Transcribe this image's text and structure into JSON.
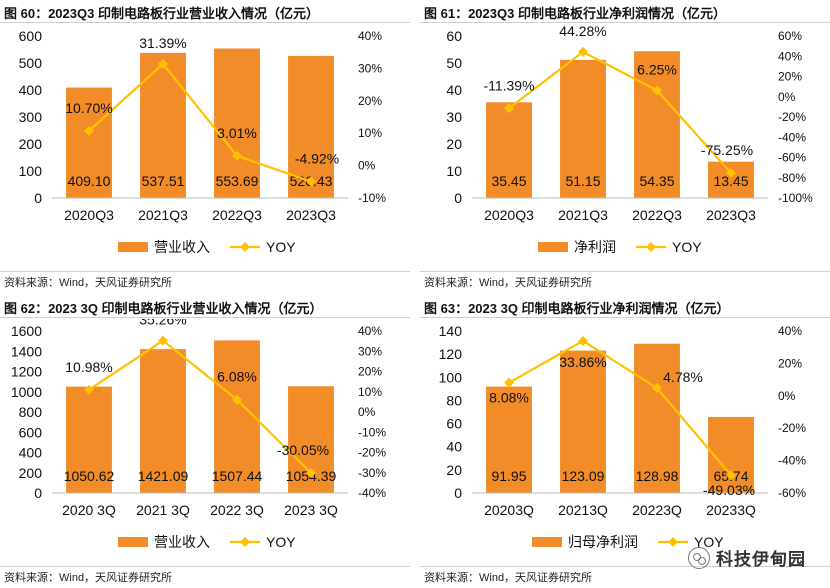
{
  "panels": [
    {
      "title": "图 60：2023Q3 印制电路板行业营业收入情况（亿元）",
      "source": "资料来源：Wind，天风证券研究所"
    },
    {
      "title": "图 61：2023Q3 印制电路板行业净利润情况（亿元）",
      "source": "资料来源：Wind，天风证券研究所"
    },
    {
      "title": "图 62：2023 3Q 印制电路板行业营业收入情况（亿元）",
      "source": "资料来源：Wind，天风证券研究所"
    },
    {
      "title": "图 63：2023 3Q 印制电路板行业净利润情况（亿元）",
      "source": "资料来源：Wind，天风证券研究所"
    }
  ],
  "watermark": {
    "text": "科技伊甸园",
    "icon": "wechat-icon"
  },
  "colors": {
    "bar": "#F28C28",
    "line": "#FFC000"
  },
  "chart_data": [
    {
      "type": "bar",
      "categories": [
        "2020Q3",
        "2021Q3",
        "2022Q3",
        "2023Q3"
      ],
      "series": [
        {
          "name": "营业收入",
          "values": [
            409.1,
            537.51,
            553.69,
            526.43
          ],
          "labels": [
            "409.10",
            "537.51",
            "553.69",
            "526.43"
          ]
        },
        {
          "name": "YOY",
          "type": "line",
          "axis": "right",
          "values": [
            10.7,
            31.39,
            3.01,
            -4.92
          ],
          "labels": [
            "10.70%",
            "31.39%",
            "3.01%",
            "-4.92%"
          ]
        }
      ],
      "ylim": [
        0,
        600
      ],
      "yticks": [
        "0",
        "100",
        "200",
        "300",
        "400",
        "500",
        "600"
      ],
      "y2lim": [
        -10,
        40
      ],
      "y2ticks": [
        "-10%",
        "0%",
        "10%",
        "20%",
        "30%",
        "40%"
      ],
      "legend_position": "bottom"
    },
    {
      "type": "bar",
      "categories": [
        "2020Q3",
        "2021Q3",
        "2022Q3",
        "2023Q3"
      ],
      "series": [
        {
          "name": "净利润",
          "values": [
            35.45,
            51.15,
            54.35,
            13.45
          ],
          "labels": [
            "35.45",
            "51.15",
            "54.35",
            "13.45"
          ]
        },
        {
          "name": "YOY",
          "type": "line",
          "axis": "right",
          "values": [
            -11.39,
            44.28,
            6.25,
            -75.25
          ],
          "labels": [
            "-11.39%",
            "44.28%",
            "6.25%",
            "-75.25%"
          ]
        }
      ],
      "ylim": [
        0,
        60
      ],
      "yticks": [
        "0",
        "10",
        "20",
        "30",
        "40",
        "50",
        "60"
      ],
      "y2lim": [
        -100,
        60
      ],
      "y2ticks": [
        "-100%",
        "-80%",
        "-60%",
        "-40%",
        "-20%",
        "0%",
        "20%",
        "40%",
        "60%"
      ],
      "legend_position": "bottom"
    },
    {
      "type": "bar",
      "categories": [
        "2020 3Q",
        "2021 3Q",
        "2022 3Q",
        "2023 3Q"
      ],
      "series": [
        {
          "name": "营业收入",
          "values": [
            1050.62,
            1421.09,
            1507.44,
            1054.39
          ],
          "labels": [
            "1050.62",
            "1421.09",
            "1507.44",
            "1054.39"
          ]
        },
        {
          "name": "YOY",
          "type": "line",
          "axis": "right",
          "values": [
            10.98,
            35.26,
            6.08,
            -30.05
          ],
          "labels": [
            "10.98%",
            "35.26%",
            "6.08%",
            "-30.05%"
          ]
        }
      ],
      "ylim": [
        0,
        1600
      ],
      "yticks": [
        "0",
        "200",
        "400",
        "600",
        "800",
        "1000",
        "1200",
        "1400",
        "1600"
      ],
      "y2lim": [
        -40,
        40
      ],
      "y2ticks": [
        "-40%",
        "-30%",
        "-20%",
        "-10%",
        "0%",
        "10%",
        "20%",
        "30%",
        "40%"
      ],
      "legend_position": "bottom"
    },
    {
      "type": "bar",
      "categories": [
        "20203Q",
        "20213Q",
        "20223Q",
        "20233Q"
      ],
      "series": [
        {
          "name": "归母净利润",
          "values": [
            91.95,
            123.09,
            128.98,
            65.74
          ],
          "labels": [
            "91.95",
            "123.09",
            "128.98",
            "65.74"
          ]
        },
        {
          "name": "YOY",
          "type": "line",
          "axis": "right",
          "values": [
            8.08,
            33.86,
            4.78,
            -49.03
          ],
          "labels": [
            "8.08%",
            "33.86%",
            "4.78%",
            "-49.03%"
          ]
        }
      ],
      "ylim": [
        0,
        140
      ],
      "yticks": [
        "0",
        "20",
        "40",
        "60",
        "80",
        "100",
        "120",
        "140"
      ],
      "y2lim": [
        -60,
        40
      ],
      "y2ticks": [
        "-60%",
        "-40%",
        "-20%",
        "0%",
        "20%",
        "40%"
      ],
      "legend_position": "bottom"
    }
  ]
}
